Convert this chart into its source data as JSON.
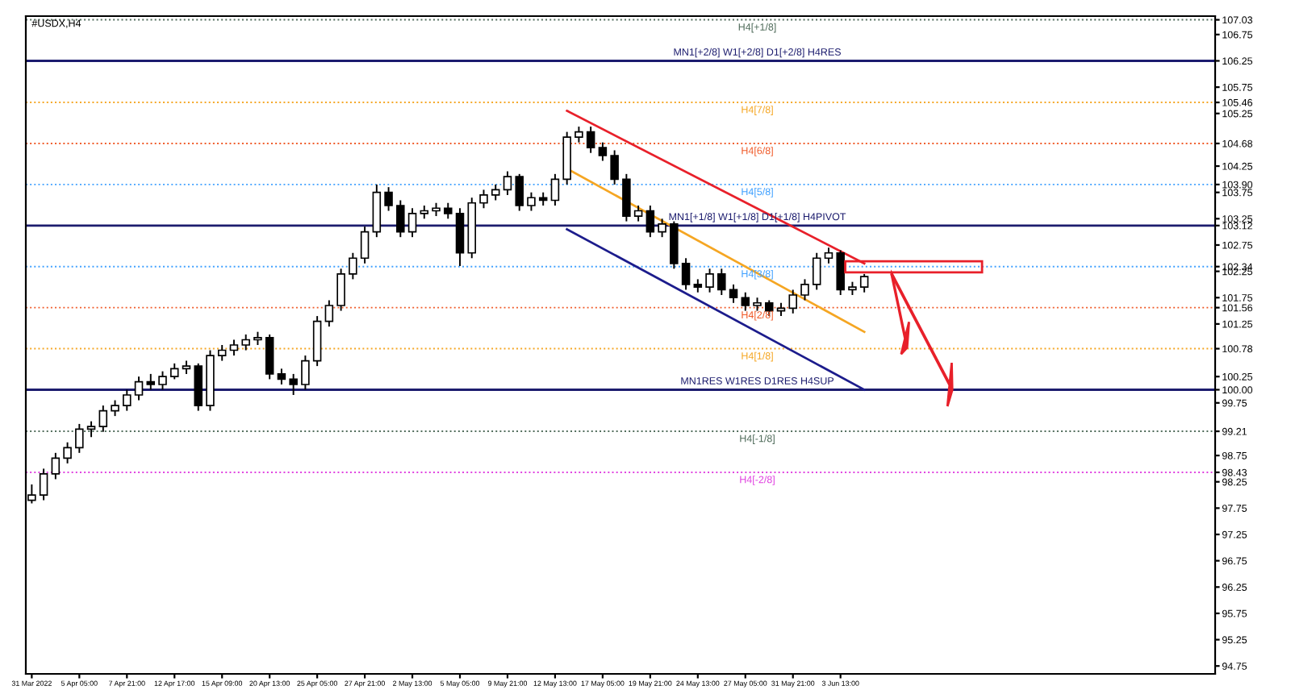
{
  "chart_data": {
    "type": "candlestick",
    "title": "#USDX,H4",
    "categories": [
      "31 Mar 2022",
      null,
      null,
      null,
      "5 Apr 05:00",
      null,
      null,
      null,
      "7 Apr 21:00",
      null,
      null,
      null,
      "12 Apr 17:00",
      null,
      null,
      null,
      "15 Apr 09:00",
      null,
      null,
      null,
      "20 Apr 13:00",
      null,
      null,
      null,
      "25 Apr 05:00",
      null,
      null,
      null,
      "27 Apr 21:00",
      null,
      null,
      null,
      "2 May 13:00",
      null,
      null,
      null,
      "5 May 05:00",
      null,
      null,
      null,
      "9 May 21:00",
      null,
      null,
      null,
      "12 May 13:00",
      null,
      null,
      null,
      "17 May 05:00",
      null,
      null,
      null,
      "19 May 21:00",
      null,
      null,
      null,
      "24 May 13:00",
      null,
      null,
      null,
      "27 May 05:00",
      null,
      null,
      null,
      "31 May 21:00",
      null,
      null,
      null,
      "3 Jun 13:00",
      null,
      null,
      null,
      null,
      null,
      null,
      null,
      null,
      null,
      null,
      null,
      null,
      null,
      null,
      null,
      null,
      null,
      null,
      null,
      null,
      null,
      null,
      null,
      null,
      null,
      null,
      null,
      null,
      null,
      null,
      null
    ],
    "ohlc": [
      [
        97.9,
        98.2,
        97.84,
        98.0
      ],
      [
        98.0,
        98.5,
        97.9,
        98.4
      ],
      [
        98.4,
        98.8,
        98.3,
        98.7
      ],
      [
        98.7,
        99.0,
        98.6,
        98.9
      ],
      [
        98.9,
        99.35,
        98.8,
        99.25
      ],
      [
        99.25,
        99.4,
        99.1,
        99.3
      ],
      [
        99.3,
        99.7,
        99.2,
        99.6
      ],
      [
        99.6,
        99.8,
        99.5,
        99.7
      ],
      [
        99.7,
        100.0,
        99.6,
        99.9
      ],
      [
        99.9,
        100.25,
        99.8,
        100.15
      ],
      [
        100.15,
        100.3,
        100.0,
        100.1
      ],
      [
        100.1,
        100.35,
        100.0,
        100.25
      ],
      [
        100.25,
        100.5,
        100.2,
        100.4
      ],
      [
        100.4,
        100.55,
        100.3,
        100.45
      ],
      [
        100.45,
        100.5,
        99.6,
        99.7
      ],
      [
        99.7,
        100.75,
        99.6,
        100.65
      ],
      [
        100.65,
        100.85,
        100.55,
        100.75
      ],
      [
        100.75,
        100.95,
        100.65,
        100.85
      ],
      [
        100.85,
        101.05,
        100.75,
        100.95
      ],
      [
        100.95,
        101.1,
        100.85,
        100.99
      ],
      [
        100.99,
        101.05,
        100.2,
        100.3
      ],
      [
        100.3,
        100.4,
        100.1,
        100.2
      ],
      [
        100.2,
        100.3,
        99.9,
        100.1
      ],
      [
        100.1,
        100.65,
        100.0,
        100.55
      ],
      [
        100.55,
        101.4,
        100.45,
        101.3
      ],
      [
        101.3,
        101.7,
        101.2,
        101.6
      ],
      [
        101.6,
        102.3,
        101.5,
        102.2
      ],
      [
        102.2,
        102.6,
        102.1,
        102.5
      ],
      [
        102.5,
        103.1,
        102.4,
        103.0
      ],
      [
        103.0,
        103.9,
        102.9,
        103.75
      ],
      [
        103.75,
        103.85,
        103.4,
        103.5
      ],
      [
        103.5,
        103.6,
        102.9,
        103.0
      ],
      [
        103.0,
        103.45,
        102.9,
        103.35
      ],
      [
        103.35,
        103.5,
        103.25,
        103.4
      ],
      [
        103.4,
        103.55,
        103.3,
        103.45
      ],
      [
        103.45,
        103.55,
        103.25,
        103.35
      ],
      [
        103.35,
        103.45,
        102.35,
        102.6
      ],
      [
        102.6,
        103.65,
        102.5,
        103.55
      ],
      [
        103.55,
        103.8,
        103.45,
        103.7
      ],
      [
        103.7,
        103.9,
        103.6,
        103.8
      ],
      [
        103.8,
        104.15,
        103.7,
        104.05
      ],
      [
        104.05,
        104.1,
        103.4,
        103.5
      ],
      [
        103.5,
        103.75,
        103.4,
        103.65
      ],
      [
        103.65,
        103.75,
        103.5,
        103.6
      ],
      [
        103.6,
        104.1,
        103.5,
        104.0
      ],
      [
        104.0,
        104.9,
        103.9,
        104.8
      ],
      [
        104.8,
        105.0,
        104.7,
        104.9
      ],
      [
        104.9,
        105.0,
        104.5,
        104.6
      ],
      [
        104.6,
        104.7,
        104.35,
        104.45
      ],
      [
        104.45,
        104.55,
        103.9,
        104.0
      ],
      [
        104.0,
        104.1,
        103.2,
        103.3
      ],
      [
        103.3,
        103.5,
        103.2,
        103.4
      ],
      [
        103.4,
        103.5,
        102.9,
        103.0
      ],
      [
        103.0,
        103.25,
        102.9,
        103.15
      ],
      [
        103.15,
        103.2,
        102.3,
        102.4
      ],
      [
        102.4,
        102.5,
        101.9,
        102.0
      ],
      [
        102.0,
        102.1,
        101.85,
        101.95
      ],
      [
        101.95,
        102.3,
        101.85,
        102.2
      ],
      [
        102.2,
        102.3,
        101.8,
        101.9
      ],
      [
        101.9,
        102.0,
        101.65,
        101.75
      ],
      [
        101.75,
        101.85,
        101.5,
        101.6
      ],
      [
        101.6,
        101.75,
        101.5,
        101.65
      ],
      [
        101.65,
        101.7,
        101.4,
        101.5
      ],
      [
        101.5,
        101.65,
        101.4,
        101.55
      ],
      [
        101.55,
        101.9,
        101.45,
        101.8
      ],
      [
        101.8,
        102.1,
        101.7,
        102.0
      ],
      [
        102.0,
        102.6,
        101.9,
        102.5
      ],
      [
        102.5,
        102.7,
        102.4,
        102.6
      ],
      [
        102.6,
        102.65,
        101.8,
        101.9
      ],
      [
        101.9,
        102.05,
        101.8,
        101.95
      ],
      [
        101.95,
        102.2,
        101.85,
        102.15
      ],
      null,
      null,
      null,
      null,
      null,
      null,
      null,
      null,
      null,
      null,
      null,
      null,
      null,
      null,
      null,
      null,
      null,
      null,
      null,
      null,
      null,
      null,
      null,
      null,
      null,
      null,
      null,
      null,
      null
    ],
    "series": [
      {
        "type": "line",
        "color": "#e8202a",
        "values": [
          null,
          null,
          null,
          null,
          null,
          null,
          null,
          null,
          null,
          null,
          null,
          null,
          null,
          null,
          null,
          null,
          null,
          null,
          null,
          null,
          null,
          null,
          null,
          null,
          null,
          null,
          null,
          null,
          null,
          null,
          null,
          null,
          null,
          null,
          null,
          null,
          null,
          null,
          null,
          null,
          null,
          null,
          null,
          null,
          null,
          105.3,
          null,
          null,
          null,
          null,
          null,
          null,
          null,
          null,
          null,
          null,
          null,
          null,
          null,
          null,
          null,
          null,
          null,
          null,
          null,
          null,
          null,
          null,
          null,
          null,
          102.4,
          null,
          null,
          null,
          null,
          null,
          null,
          null,
          null,
          null,
          null,
          null,
          null,
          null,
          null,
          null,
          null,
          null,
          null,
          null,
          null,
          null,
          null,
          null,
          null,
          null,
          null,
          null,
          null,
          null
        ]
      },
      {
        "type": "line",
        "color": "#f5a623",
        "values": [
          null,
          null,
          null,
          null,
          null,
          null,
          null,
          null,
          null,
          null,
          null,
          null,
          null,
          null,
          null,
          null,
          null,
          null,
          null,
          null,
          null,
          null,
          null,
          null,
          null,
          null,
          null,
          null,
          null,
          null,
          null,
          null,
          null,
          null,
          null,
          null,
          null,
          null,
          null,
          null,
          null,
          null,
          null,
          null,
          null,
          104.2,
          null,
          null,
          null,
          null,
          null,
          null,
          null,
          null,
          null,
          null,
          null,
          null,
          null,
          null,
          null,
          null,
          null,
          null,
          null,
          null,
          null,
          null,
          null,
          null,
          101.1,
          null,
          null,
          null,
          null,
          null,
          null,
          null,
          null,
          null,
          null,
          null,
          null,
          null,
          null,
          null,
          null,
          null,
          null,
          null,
          null,
          null,
          null,
          null,
          null,
          null,
          null,
          null,
          null,
          null
        ]
      },
      {
        "type": "line",
        "color": "#1c1c8c",
        "values": [
          null,
          null,
          null,
          null,
          null,
          null,
          null,
          null,
          null,
          null,
          null,
          null,
          null,
          null,
          null,
          null,
          null,
          null,
          null,
          null,
          null,
          null,
          null,
          null,
          null,
          null,
          null,
          null,
          null,
          null,
          null,
          null,
          null,
          null,
          null,
          null,
          null,
          null,
          null,
          null,
          null,
          null,
          null,
          null,
          null,
          103.05,
          null,
          null,
          null,
          null,
          null,
          null,
          null,
          null,
          null,
          null,
          null,
          null,
          null,
          null,
          null,
          null,
          null,
          null,
          null,
          null,
          null,
          null,
          null,
          null,
          100.0,
          null,
          null,
          null,
          null,
          null,
          null,
          null,
          null,
          null,
          null,
          null,
          null,
          null,
          null,
          null,
          null,
          null,
          null,
          null,
          null,
          null,
          null,
          null,
          null,
          null,
          null,
          null,
          null,
          null
        ]
      }
    ],
    "ylim": [
      94.6,
      107.1
    ],
    "yticks": [
      94.75,
      95.25,
      95.75,
      96.25,
      96.75,
      97.25,
      97.75,
      98.25,
      98.75,
      99.75,
      100.25,
      101.25,
      101.75,
      102.25,
      102.75,
      103.25,
      103.75,
      104.25,
      105.25,
      105.75,
      106.75,
      98.43,
      99.21,
      {
        "value": 100.0,
        "label": "100.00"
      },
      100.78,
      101.56,
      102.34,
      103.12,
      {
        "value": 103.9,
        "label": "103.90"
      },
      104.68,
      105.46,
      106.25,
      107.03
    ],
    "ref_lines": [
      {
        "axis": "y",
        "value": 107.03,
        "label": "H4[+1/8]",
        "color": "#4f6b5a",
        "line_style": "dotted"
      },
      {
        "axis": "y",
        "value": 106.25,
        "label": "MN1[+2/8] W1[+2/8] D1[+2/8] H4RES",
        "color": "#1c1c6e",
        "line_style": "solid"
      },
      {
        "axis": "y",
        "value": 105.46,
        "label": "H4[7/8]",
        "color": "#f5a623",
        "line_style": "dotted"
      },
      {
        "axis": "y",
        "value": 104.68,
        "label": "H4[6/8]",
        "color": "#f05a28",
        "line_style": "dotted"
      },
      {
        "axis": "y",
        "value": 103.9,
        "label": "H4[5/8]",
        "color": "#3fa0ff",
        "line_style": "dotted"
      },
      {
        "axis": "y",
        "value": 103.12,
        "label": "MN1[+1/8] W1[+1/8] D1[+1/8] H4PIVOT",
        "color": "#1c1c6e",
        "line_style": "solid"
      },
      {
        "axis": "y",
        "value": 102.34,
        "label": "H4[3/8]",
        "color": "#3fa0ff",
        "line_style": "dotted"
      },
      {
        "axis": "y",
        "value": 101.56,
        "label": "H4[2/8]",
        "color": "#f05a28",
        "line_style": "dotted"
      },
      {
        "axis": "y",
        "value": 100.78,
        "label": "H4[1/8]",
        "color": "#f5a623",
        "line_style": "dotted"
      },
      {
        "axis": "y",
        "value": 100.0,
        "label": "MN1RES W1RES D1RES H4SUP",
        "color": "#1c1c6e",
        "line_style": "solid"
      },
      {
        "axis": "y",
        "value": 99.21,
        "label": "H4[-1/8]",
        "color": "#4f6b5a",
        "line_style": "dotted"
      },
      {
        "axis": "y",
        "value": 98.43,
        "label": "H4[-2/8]",
        "color": "#e040e0",
        "line_style": "dotted"
      }
    ],
    "grid": false,
    "legend": false
  }
}
